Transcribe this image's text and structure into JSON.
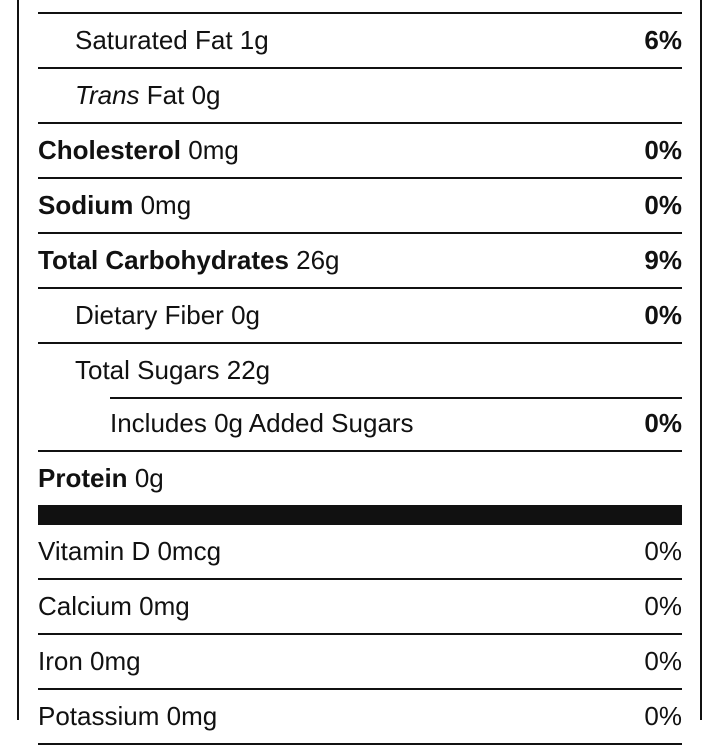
{
  "nutrients": [
    {
      "name": "Saturated Fat",
      "amount": "1g",
      "dv": "6%"
    },
    {
      "italic": "Trans",
      "name": "Fat",
      "amount": "0g"
    },
    {
      "name": "Cholesterol",
      "amount": "0mg",
      "dv": "0%"
    },
    {
      "name": "Sodium",
      "amount": "0mg",
      "dv": "0%"
    },
    {
      "name": "Total Carbohydrates",
      "amount": "26g",
      "dv": "9%"
    },
    {
      "name": "Dietary Fiber",
      "amount": "0g",
      "dv": "0%"
    },
    {
      "name": "Total Sugars",
      "amount": "22g"
    },
    {
      "name": "Includes 0g Added Sugars",
      "dv": "0%"
    },
    {
      "name": "Protein",
      "amount": "0g"
    }
  ],
  "vitamins": [
    {
      "name": "Vitamin D",
      "amount": "0mcg",
      "dv": "0%"
    },
    {
      "name": "Calcium",
      "amount": "0mg",
      "dv": "0%"
    },
    {
      "name": "Iron",
      "amount": "0mg",
      "dv": "0%"
    },
    {
      "name": "Potassium",
      "amount": "0mg",
      "dv": "0%"
    }
  ]
}
